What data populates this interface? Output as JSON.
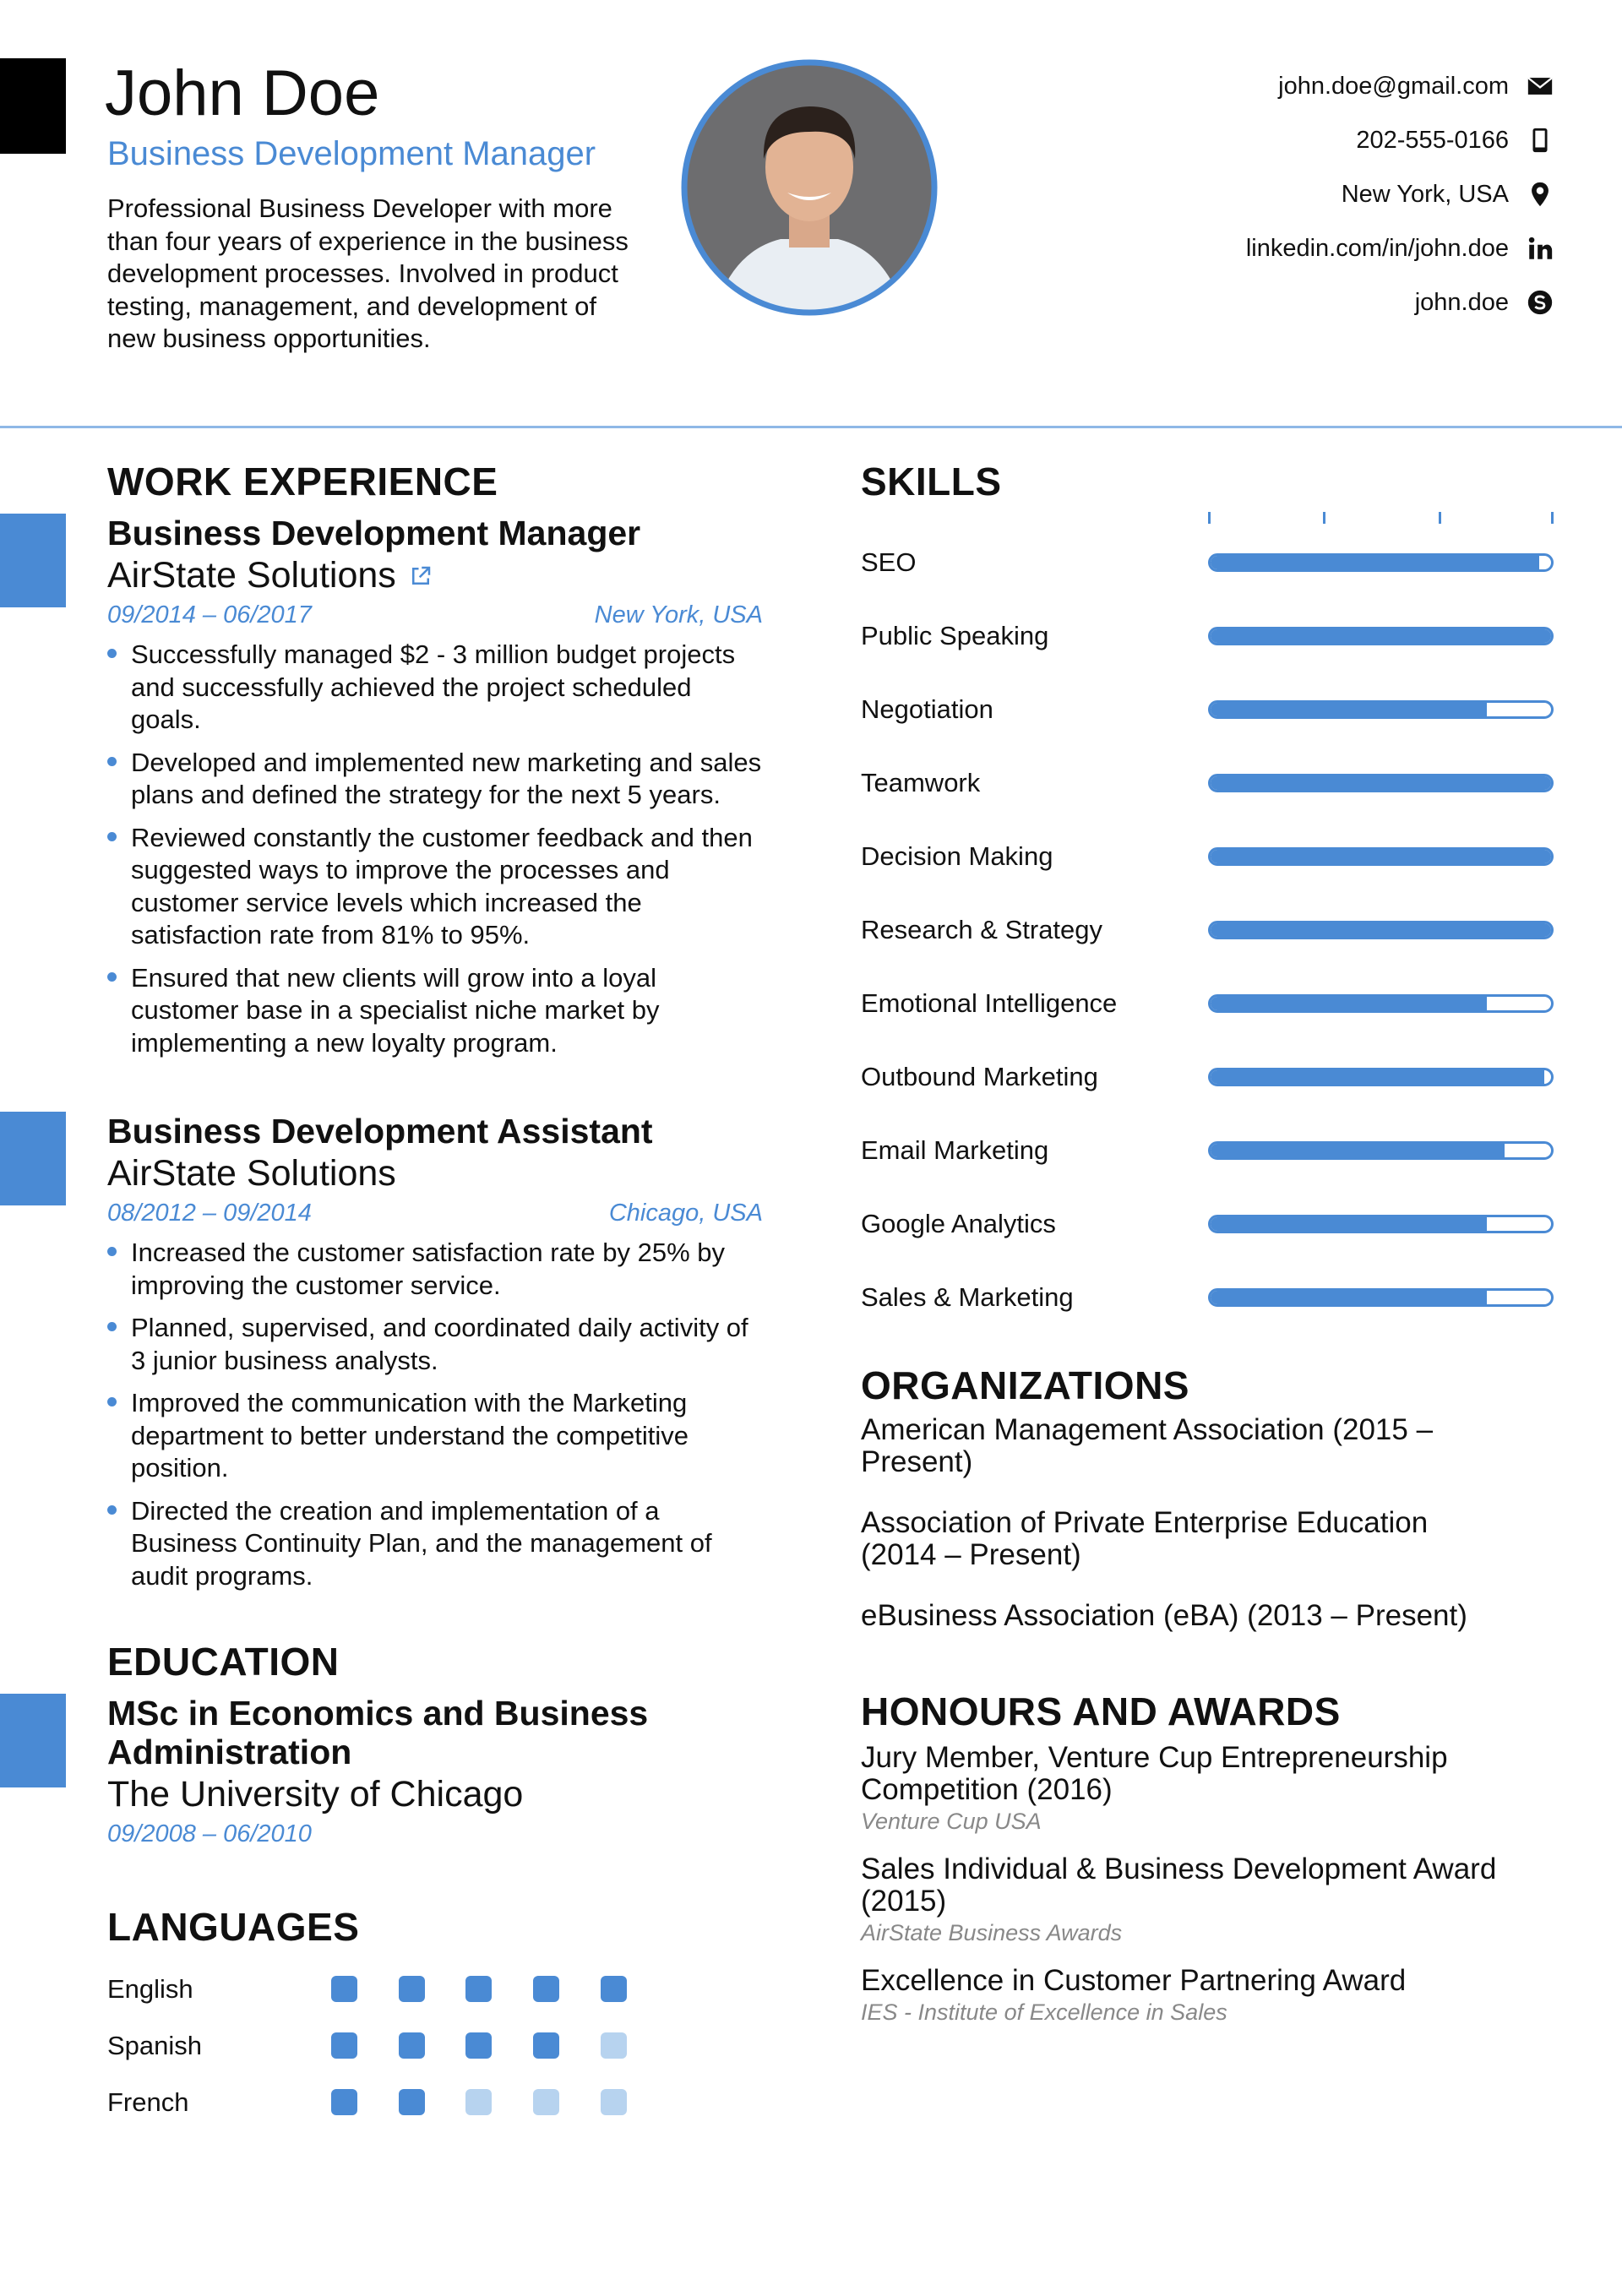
{
  "header": {
    "name": "John Doe",
    "title": "Business Development Manager",
    "summary": "Professional Business Developer with more than four years of experience in the business development processes. Involved in product testing, management, and development of new business opportunities.",
    "contacts": [
      "john.doe@gmail.com",
      "202-555-0166",
      "New York, USA",
      "linkedin.com/in/john.doe",
      "john.doe"
    ]
  },
  "work": {
    "heading": "WORK EXPERIENCE",
    "jobs": [
      {
        "title": "Business Development Manager",
        "company": "AirState Solutions",
        "dates": "09/2014 – 06/2017",
        "location": "New York, USA",
        "bullets": [
          "Successfully managed $2 - 3 million budget projects and successfully achieved the project scheduled goals.",
          "Developed and implemented new marketing and sales plans and defined the strategy for the next 5 years.",
          "Reviewed constantly the customer feedback and then suggested ways to improve the processes and customer service levels which increased the satisfaction rate from 81% to 95%.",
          "Ensured that new clients will grow into a loyal customer base in a specialist niche market by implementing a new loyalty program."
        ]
      },
      {
        "title": "Business Development Assistant",
        "company": "AirState Solutions",
        "dates": "08/2012 – 09/2014",
        "location": "Chicago, USA",
        "bullets": [
          "Increased the customer satisfaction rate by 25% by improving the customer service.",
          "Planned, supervised, and coordinated daily activity of 3 junior business analysts.",
          "Improved the communication with the Marketing department to better understand the competitive position.",
          "Directed the creation and implementation of a Business Continuity Plan, and the management of audit programs."
        ]
      }
    ]
  },
  "education": {
    "heading": "EDUCATION",
    "items": [
      {
        "degree": "MSc in Economics and Business Administration",
        "school": "The University of Chicago",
        "dates": "09/2008 – 06/2010"
      }
    ]
  },
  "languages": {
    "heading": "LANGUAGES",
    "max": 5,
    "items": [
      {
        "name": "English",
        "level": 5
      },
      {
        "name": "Spanish",
        "level": 4
      },
      {
        "name": "French",
        "level": 2
      }
    ]
  },
  "skills": {
    "heading": "SKILLS",
    "range": [
      0,
      3
    ],
    "ticks": [
      0,
      1,
      2,
      3
    ],
    "items": [
      {
        "name": "SEO",
        "level": 2.85
      },
      {
        "name": "Public Speaking",
        "level": 2.97
      },
      {
        "name": "Negotiation",
        "level": 2.4
      },
      {
        "name": "Teamwork",
        "level": 3
      },
      {
        "name": "Decision Making",
        "level": 3
      },
      {
        "name": "Research & Strategy",
        "level": 3
      },
      {
        "name": "Emotional Intelligence",
        "level": 2.4
      },
      {
        "name": "Outbound Marketing",
        "level": 2.9
      },
      {
        "name": "Email Marketing",
        "level": 2.55
      },
      {
        "name": "Google Analytics",
        "level": 2.4
      },
      {
        "name": "Sales & Marketing",
        "level": 2.4
      }
    ]
  },
  "organizations": {
    "heading": "ORGANIZATIONS",
    "items": [
      "American Management Association (2015 – Present)",
      "Association of Private Enterprise Education (2014 – Present)",
      "eBusiness Association (eBA) (2013 – Present)"
    ]
  },
  "awards": {
    "heading": "HONOURS AND AWARDS",
    "items": [
      {
        "title": "Jury Member, Venture Cup Entrepreneurship Competition (2016)",
        "issuer": "Venture Cup USA"
      },
      {
        "title": "Sales Individual & Business Development Award (2015)",
        "issuer": "AirState Business Awards"
      },
      {
        "title": "Excellence in Customer Partnering Award",
        "issuer": "IES - Institute of Excellence in Sales"
      }
    ]
  }
}
